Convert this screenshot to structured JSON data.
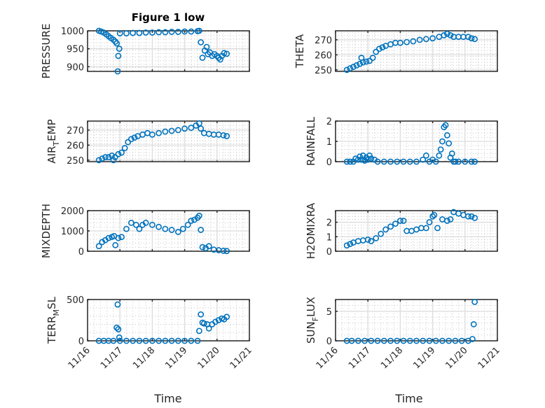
{
  "figure": {
    "title": "Figure 1 low",
    "xlabel": "Time",
    "marker_color": "#0072BD"
  },
  "chart_data": [
    {
      "type": "scatter",
      "ylabel": "PRESSURE",
      "xlim": [
        0,
        5
      ],
      "xticks": [
        0,
        1,
        2,
        3,
        4,
        5
      ],
      "xticklabels": [
        "11/16",
        "11/17",
        "11/18",
        "11/19",
        "11/20",
        "11/21"
      ],
      "ylim": [
        887,
        1000
      ],
      "yticks": [
        900,
        950,
        1000
      ],
      "x": [
        0.35,
        0.42,
        0.5,
        0.58,
        0.65,
        0.72,
        0.8,
        0.86,
        0.9,
        0.93,
        0.95,
        0.98,
        1.0,
        1.2,
        1.4,
        1.6,
        1.8,
        2.0,
        2.2,
        2.4,
        2.6,
        2.8,
        3.0,
        3.2,
        3.4,
        3.45,
        3.5,
        3.55,
        3.62,
        3.68,
        3.72,
        3.78,
        3.85,
        3.92,
        4.0,
        4.05,
        4.1,
        4.15,
        4.22,
        4.3
      ],
      "y": [
        1000,
        998,
        995,
        990,
        985,
        980,
        975,
        970,
        965,
        887,
        930,
        950,
        993,
        993,
        994,
        994,
        995,
        995,
        996,
        996,
        997,
        997,
        998,
        998,
        999,
        1000,
        968,
        925,
        945,
        955,
        935,
        940,
        930,
        935,
        930,
        925,
        920,
        930,
        938,
        936
      ]
    },
    {
      "type": "scatter",
      "ylabel": "THETA",
      "xlim": [
        0,
        5
      ],
      "xticks": [
        0,
        1,
        2,
        3,
        4,
        5
      ],
      "xticklabels": [
        "11/16",
        "11/17",
        "11/18",
        "11/19",
        "11/20",
        "11/21"
      ],
      "ylim": [
        249,
        276
      ],
      "yticks": [
        250,
        260,
        270
      ],
      "x": [
        0.35,
        0.45,
        0.55,
        0.65,
        0.75,
        0.8,
        0.85,
        0.95,
        1.05,
        1.15,
        1.25,
        1.35,
        1.45,
        1.55,
        1.7,
        1.85,
        2.0,
        2.2,
        2.4,
        2.6,
        2.8,
        3.0,
        3.2,
        3.35,
        3.45,
        3.55,
        3.65,
        3.8,
        3.95,
        4.1,
        4.2,
        4.3
      ],
      "y": [
        250,
        251,
        252,
        253,
        254,
        258,
        255,
        255.5,
        256,
        258,
        262,
        264,
        265,
        266,
        267,
        268,
        268,
        268.5,
        269,
        270,
        270.5,
        271,
        272,
        273,
        274,
        273,
        272,
        272,
        272,
        272,
        271,
        270.5
      ]
    },
    {
      "type": "scatter",
      "ylabel": "AIR_TEMP",
      "xlim": [
        0,
        5
      ],
      "xticks": [
        0,
        1,
        2,
        3,
        4,
        5
      ],
      "xticklabels": [
        "11/16",
        "11/17",
        "11/18",
        "11/19",
        "11/20",
        "11/21"
      ],
      "ylim": [
        249,
        276
      ],
      "yticks": [
        250,
        260,
        270
      ],
      "x": [
        0.35,
        0.45,
        0.55,
        0.65,
        0.75,
        0.8,
        0.85,
        0.95,
        1.05,
        1.15,
        1.25,
        1.35,
        1.45,
        1.55,
        1.7,
        1.85,
        2.0,
        2.2,
        2.4,
        2.6,
        2.8,
        3.0,
        3.2,
        3.35,
        3.45,
        3.5,
        3.6,
        3.75,
        3.9,
        4.05,
        4.2,
        4.3
      ],
      "y": [
        250,
        251,
        252,
        252,
        253,
        250,
        252,
        254,
        255,
        258,
        262,
        264,
        265,
        266,
        267,
        268,
        267,
        268,
        269,
        269.5,
        270,
        271,
        271.5,
        273,
        274.5,
        271,
        268,
        267.5,
        267,
        267,
        266.5,
        266
      ]
    },
    {
      "type": "scatter",
      "ylabel": "RAINFALL",
      "xlim": [
        0,
        5
      ],
      "xticks": [
        0,
        1,
        2,
        3,
        4,
        5
      ],
      "xticklabels": [
        "11/16",
        "11/17",
        "11/18",
        "11/19",
        "11/20",
        "11/21"
      ],
      "ylim": [
        0,
        2
      ],
      "yticks": [
        0,
        1,
        2
      ],
      "x": [
        0.35,
        0.45,
        0.55,
        0.62,
        0.7,
        0.75,
        0.8,
        0.85,
        0.9,
        0.95,
        1.0,
        1.05,
        1.1,
        1.2,
        1.3,
        1.5,
        1.7,
        1.9,
        2.1,
        2.3,
        2.5,
        2.7,
        2.8,
        2.9,
        3.0,
        3.1,
        3.2,
        3.25,
        3.3,
        3.35,
        3.4,
        3.45,
        3.5,
        3.55,
        3.6,
        3.65,
        3.7,
        3.8,
        4.0,
        4.2,
        4.3
      ],
      "y": [
        0,
        0,
        0,
        0.15,
        0.1,
        0.25,
        0.1,
        0.3,
        0.05,
        0.2,
        0.1,
        0.3,
        0.15,
        0.1,
        0,
        0,
        0,
        0,
        0,
        0,
        0,
        0.1,
        0.3,
        0,
        0.1,
        0,
        0.3,
        0.6,
        1.0,
        1.7,
        1.8,
        1.3,
        0.9,
        0.2,
        0.4,
        0,
        0,
        0,
        0,
        0,
        0
      ]
    },
    {
      "type": "scatter",
      "ylabel": "MIXDEPTH",
      "xlim": [
        0,
        5
      ],
      "xticks": [
        0,
        1,
        2,
        3,
        4,
        5
      ],
      "xticklabels": [
        "11/16",
        "11/17",
        "11/18",
        "11/19",
        "11/20",
        "11/21"
      ],
      "ylim": [
        0,
        2000
      ],
      "yticks": [
        0,
        1000,
        2000
      ],
      "x": [
        0.35,
        0.45,
        0.55,
        0.65,
        0.75,
        0.82,
        0.86,
        0.95,
        1.05,
        1.2,
        1.35,
        1.5,
        1.6,
        1.7,
        1.8,
        2.0,
        2.2,
        2.4,
        2.6,
        2.8,
        2.95,
        3.1,
        3.2,
        3.3,
        3.4,
        3.45,
        3.5,
        3.55,
        3.65,
        3.75,
        3.9,
        4.05,
        4.2,
        4.3
      ],
      "y": [
        250,
        450,
        550,
        650,
        700,
        750,
        300,
        650,
        700,
        1100,
        1400,
        1300,
        1100,
        1300,
        1400,
        1300,
        1200,
        1100,
        1050,
        950,
        1100,
        1300,
        1500,
        1550,
        1650,
        1750,
        1050,
        200,
        150,
        250,
        80,
        50,
        20,
        10
      ]
    },
    {
      "type": "scatter",
      "ylabel": "H2OMIXRA",
      "xlim": [
        0,
        5
      ],
      "xticks": [
        0,
        1,
        2,
        3,
        4,
        5
      ],
      "xticklabels": [
        "11/16",
        "11/17",
        "11/18",
        "11/19",
        "11/20",
        "11/21"
      ],
      "ylim": [
        0,
        2.8
      ],
      "yticks": [
        0,
        1,
        2
      ],
      "x": [
        0.35,
        0.45,
        0.55,
        0.7,
        0.85,
        1.0,
        1.1,
        1.25,
        1.4,
        1.55,
        1.7,
        1.85,
        2.0,
        2.1,
        2.2,
        2.35,
        2.5,
        2.65,
        2.8,
        2.9,
        3.0,
        3.05,
        3.15,
        3.3,
        3.45,
        3.55,
        3.65,
        3.8,
        3.95,
        4.1,
        4.2,
        4.3
      ],
      "y": [
        0.4,
        0.5,
        0.6,
        0.7,
        0.75,
        0.8,
        0.7,
        0.9,
        1.2,
        1.5,
        1.7,
        1.9,
        2.1,
        2.1,
        1.4,
        1.4,
        1.5,
        1.6,
        1.6,
        2.0,
        2.4,
        2.5,
        1.6,
        2.2,
        2.1,
        2.2,
        2.7,
        2.6,
        2.5,
        2.4,
        2.4,
        2.3
      ]
    },
    {
      "type": "scatter",
      "ylabel": "TERR_MSL",
      "xlim": [
        0,
        5
      ],
      "xticks": [
        0,
        1,
        2,
        3,
        4,
        5
      ],
      "xticklabels": [
        "11/16",
        "11/17",
        "11/18",
        "11/19",
        "11/20",
        "11/21"
      ],
      "ylim": [
        0,
        500
      ],
      "yticks": [
        0,
        500
      ],
      "x": [
        0.35,
        0.5,
        0.65,
        0.8,
        0.9,
        0.93,
        0.95,
        0.98,
        1.0,
        1.2,
        1.4,
        1.6,
        1.8,
        2.0,
        2.2,
        2.4,
        2.6,
        2.8,
        3.0,
        3.2,
        3.4,
        3.45,
        3.5,
        3.55,
        3.6,
        3.7,
        3.75,
        3.85,
        3.95,
        4.05,
        4.15,
        4.22,
        4.3
      ],
      "y": [
        0,
        0,
        0,
        0,
        160,
        440,
        140,
        40,
        0,
        0,
        0,
        0,
        0,
        0,
        0,
        0,
        0,
        0,
        0,
        0,
        0,
        120,
        320,
        220,
        210,
        200,
        150,
        200,
        230,
        250,
        270,
        260,
        290
      ]
    },
    {
      "type": "scatter",
      "ylabel": "SUN_FLUX",
      "xlim": [
        0,
        5
      ],
      "xticks": [
        0,
        1,
        2,
        3,
        4,
        5
      ],
      "xticklabels": [
        "11/16",
        "11/17",
        "11/18",
        "11/19",
        "11/20",
        "11/21"
      ],
      "ylim": [
        0,
        7
      ],
      "yticks": [
        0,
        5
      ],
      "x": [
        0.35,
        0.5,
        0.7,
        0.9,
        1.1,
        1.3,
        1.5,
        1.7,
        1.9,
        2.1,
        2.3,
        2.5,
        2.7,
        2.9,
        3.1,
        3.3,
        3.5,
        3.7,
        3.9,
        4.1,
        4.23,
        4.27,
        4.3
      ],
      "y": [
        0,
        0,
        0,
        0,
        0,
        0,
        0,
        0,
        0,
        0,
        0,
        0,
        0,
        0,
        0,
        0,
        0,
        0,
        0,
        0,
        0.3,
        2.8,
        6.6
      ]
    }
  ]
}
